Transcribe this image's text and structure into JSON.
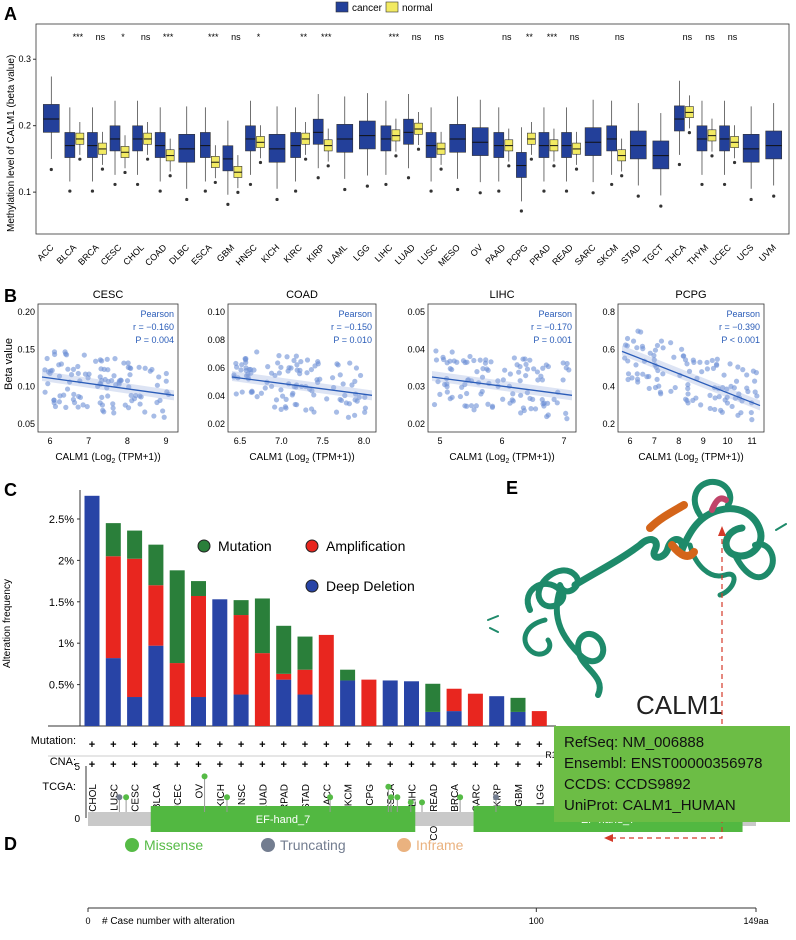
{
  "panelA": {
    "label": "A",
    "legend": {
      "cancer": "cancer",
      "normal": "normal"
    },
    "colors": {
      "cancer": "#23409a",
      "normal": "#f2ea62"
    },
    "chart_data": {
      "type": "boxplot",
      "ylabel": "Methylation level of CALM1 (beta value)",
      "ylim": [
        0.04,
        0.35
      ],
      "yticks": [
        "0.1",
        "0.2",
        "0.3"
      ],
      "yticks_values": [
        0.1,
        0.2,
        0.3
      ],
      "categories": [
        "ACC",
        "BLCA",
        "BRCA",
        "CESC",
        "CHOL",
        "COAD",
        "DLBC",
        "ESCA",
        "GBM",
        "HNSC",
        "KICH",
        "KIRC",
        "KIRP",
        "LAML",
        "LGG",
        "LIHC",
        "LUAD",
        "LUSC",
        "MESO",
        "OV",
        "PAAD",
        "PCPG",
        "PRAD",
        "READ",
        "SARC",
        "SKCM",
        "STAD",
        "TGCT",
        "THCA",
        "THYM",
        "UCEC",
        "UCS",
        "UVM"
      ],
      "significance": [
        "",
        "***",
        "ns",
        "*",
        "ns",
        "***",
        "",
        "***",
        "ns",
        "*",
        "",
        "**",
        "***",
        "",
        "",
        "***",
        "ns",
        "ns",
        "",
        "",
        "ns",
        "**",
        "***",
        "ns",
        "",
        "ns",
        "",
        "",
        "ns",
        "ns",
        "ns",
        "",
        ""
      ],
      "cancer_medians": [
        0.21,
        0.17,
        0.17,
        0.18,
        0.18,
        0.17,
        0.165,
        0.17,
        0.15,
        0.18,
        0.165,
        0.17,
        0.19,
        0.18,
        0.185,
        0.18,
        0.19,
        0.17,
        0.18,
        0.175,
        0.17,
        0.14,
        0.17,
        0.17,
        0.175,
        0.18,
        0.17,
        0.155,
        0.21,
        0.18,
        0.18,
        0.165,
        0.17
      ],
      "normal_medians": [
        null,
        0.18,
        0.165,
        0.16,
        0.18,
        0.155,
        null,
        0.145,
        0.13,
        0.175,
        null,
        0.18,
        0.17,
        null,
        null,
        0.185,
        0.195,
        0.165,
        null,
        null,
        0.17,
        0.18,
        0.17,
        0.165,
        null,
        0.155,
        null,
        null,
        0.22,
        0.185,
        0.175,
        null,
        null
      ]
    }
  },
  "panelB": {
    "label": "B",
    "ylabel": "Beta value",
    "stat_title": "Pearson",
    "plots": [
      {
        "title": "CESC",
        "r": "r = −0.160",
        "p": "P = 0.004",
        "xlabel": "CALM1 (Log",
        "xlabel_sub": "2",
        "xlabel_tail": " (TPM+1))",
        "xticks": [
          "6",
          "7",
          "8",
          "9"
        ],
        "yticks": [
          "0.05",
          "0.10",
          "0.15",
          "0.20"
        ]
      },
      {
        "title": "COAD",
        "r": "r = −0.150",
        "p": "P = 0.010",
        "xlabel": "CALM1 (Log",
        "xlabel_sub": "2",
        "xlabel_tail": " (TPM+1))",
        "xticks": [
          "6.5",
          "7.0",
          "7.5",
          "8.0"
        ],
        "yticks": [
          "0.02",
          "0.04",
          "0.06",
          "0.08",
          "0.10"
        ]
      },
      {
        "title": "LIHC",
        "r": "r = −0.170",
        "p": "P = 0.001",
        "xlabel": "CALM1 (Log",
        "xlabel_sub": "2",
        "xlabel_tail": " (TPM+1))",
        "xticks": [
          "5",
          "6",
          "7"
        ],
        "yticks": [
          "0.02",
          "0.03",
          "0.04",
          "0.05"
        ]
      },
      {
        "title": "PCPG",
        "r": "r = −0.390",
        "p": "P < 0.001",
        "xlabel": "CALM1 (Log",
        "xlabel_sub": "2",
        "xlabel_tail": " (TPM+1))",
        "xticks": [
          "6",
          "7",
          "8",
          "9",
          "10",
          "11"
        ],
        "yticks": [
          "0.2",
          "0.4",
          "0.6",
          "0.8"
        ]
      }
    ]
  },
  "panelC": {
    "label": "C",
    "chart_data": {
      "type": "bar",
      "ylabel": "Alteration frequency",
      "ylim": [
        0,
        2.85
      ],
      "yticks": [
        "0.5%",
        "1%",
        "1.5%",
        "2%",
        "2.5%"
      ],
      "yticks_values": [
        0.5,
        1,
        1.5,
        2,
        2.5
      ],
      "categories": [
        "CHOL",
        "LUSC",
        "CESC",
        "BLCA",
        "UCEC",
        "OV",
        "KICH",
        "HNSC",
        "LUAD",
        "RPAD",
        "STAD",
        "ACC",
        "SKCM",
        "PCPG",
        "ESCA",
        "LIHC",
        "COADREAD",
        "BRCA",
        "SARC",
        "KIRP",
        "GBM",
        "LGG"
      ],
      "series": [
        {
          "name": "Deep Deletion",
          "values": [
            2.78,
            0.82,
            0.35,
            0.97,
            0,
            0.35,
            1.53,
            0.38,
            0,
            0.56,
            0.38,
            0,
            0.55,
            0,
            0.55,
            0.54,
            0.17,
            0.18,
            0,
            0.36,
            0.17,
            0
          ]
        },
        {
          "name": "Amplification",
          "values": [
            0,
            1.23,
            1.67,
            0.73,
            0.76,
            1.22,
            0,
            0.96,
            0.88,
            0.07,
            0.3,
            1.1,
            0,
            0.56,
            0,
            0,
            0,
            0.27,
            0.39,
            0,
            0,
            0.18
          ]
        },
        {
          "name": "Mutation",
          "values": [
            0,
            0.4,
            0.34,
            0.49,
            1.12,
            0.18,
            0,
            0.18,
            0.66,
            0.58,
            0.4,
            0,
            0.13,
            0,
            0,
            0,
            0.34,
            0,
            0,
            0,
            0.17,
            0
          ]
        }
      ],
      "series_colors": {
        "Mutation": "#2a7f3a",
        "Amplification": "#e8261f",
        "Deep Deletion": "#2844a6"
      },
      "row_labels": [
        "Mutation:",
        "CNA:",
        "TCGA:"
      ],
      "row_marks": "+"
    }
  },
  "panelD": {
    "label": "D",
    "chart_data": {
      "type": "lollipop",
      "legend": [
        "Missense",
        "Truncating",
        "Inframe"
      ],
      "legend_colors": [
        "#56bb46",
        "#737d90",
        "#eab27f"
      ],
      "ylim": [
        0,
        5
      ],
      "yticks": [
        "0",
        "5"
      ],
      "xlim": [
        0,
        149
      ],
      "xticks_labels": [
        "0",
        "100",
        "149aa"
      ],
      "xticks_values": [
        0,
        100,
        149
      ],
      "xlabel": "# Case number with alteration",
      "domains": [
        {
          "name": "EF-hand_7",
          "start": 14,
          "end": 73
        },
        {
          "name": "EF-hand_7",
          "start": 86,
          "end": 146
        }
      ],
      "annotation": "R107C/H",
      "mutations": [
        {
          "pos": 7,
          "count": 2,
          "type": "Truncating"
        },
        {
          "pos": 8.5,
          "count": 2,
          "type": "Missense"
        },
        {
          "pos": 26,
          "count": 4,
          "type": "Missense"
        },
        {
          "pos": 31,
          "count": 2,
          "type": "Missense"
        },
        {
          "pos": 54,
          "count": 2,
          "type": "Missense"
        },
        {
          "pos": 67,
          "count": 3,
          "type": "Missense"
        },
        {
          "pos": 67.6,
          "count": 2,
          "type": "Missense"
        },
        {
          "pos": 69,
          "count": 2,
          "type": "Missense"
        },
        {
          "pos": 72,
          "count": 1.5,
          "type": "Missense"
        },
        {
          "pos": 74.5,
          "count": 1.5,
          "type": "Missense"
        },
        {
          "pos": 83,
          "count": 2,
          "type": "Missense"
        },
        {
          "pos": 91,
          "count": 2,
          "type": "Truncating"
        },
        {
          "pos": 107,
          "count": 5,
          "type": "Missense"
        },
        {
          "pos": 108,
          "count": 1.5,
          "type": "Missense"
        },
        {
          "pos": 128.5,
          "count": 2,
          "type": "Truncating"
        },
        {
          "pos": 134,
          "count": 2,
          "type": "Missense"
        },
        {
          "pos": 138,
          "count": 2,
          "type": "Missense"
        },
        {
          "pos": 141,
          "count": 1.5,
          "type": "Missense"
        },
        {
          "pos": 141.5,
          "count": 2,
          "type": "Inframe"
        }
      ]
    }
  },
  "panelE": {
    "label": "E",
    "gene": "CALM1",
    "info": [
      "RefSeq: NM_006888",
      "Ensembl: ENST00000356978",
      "CCDS: CCDS9892",
      "UniProt: CALM1_HUMAN"
    ],
    "structure_color": "#1e8a6a",
    "highlight_color": "#d4651a"
  }
}
